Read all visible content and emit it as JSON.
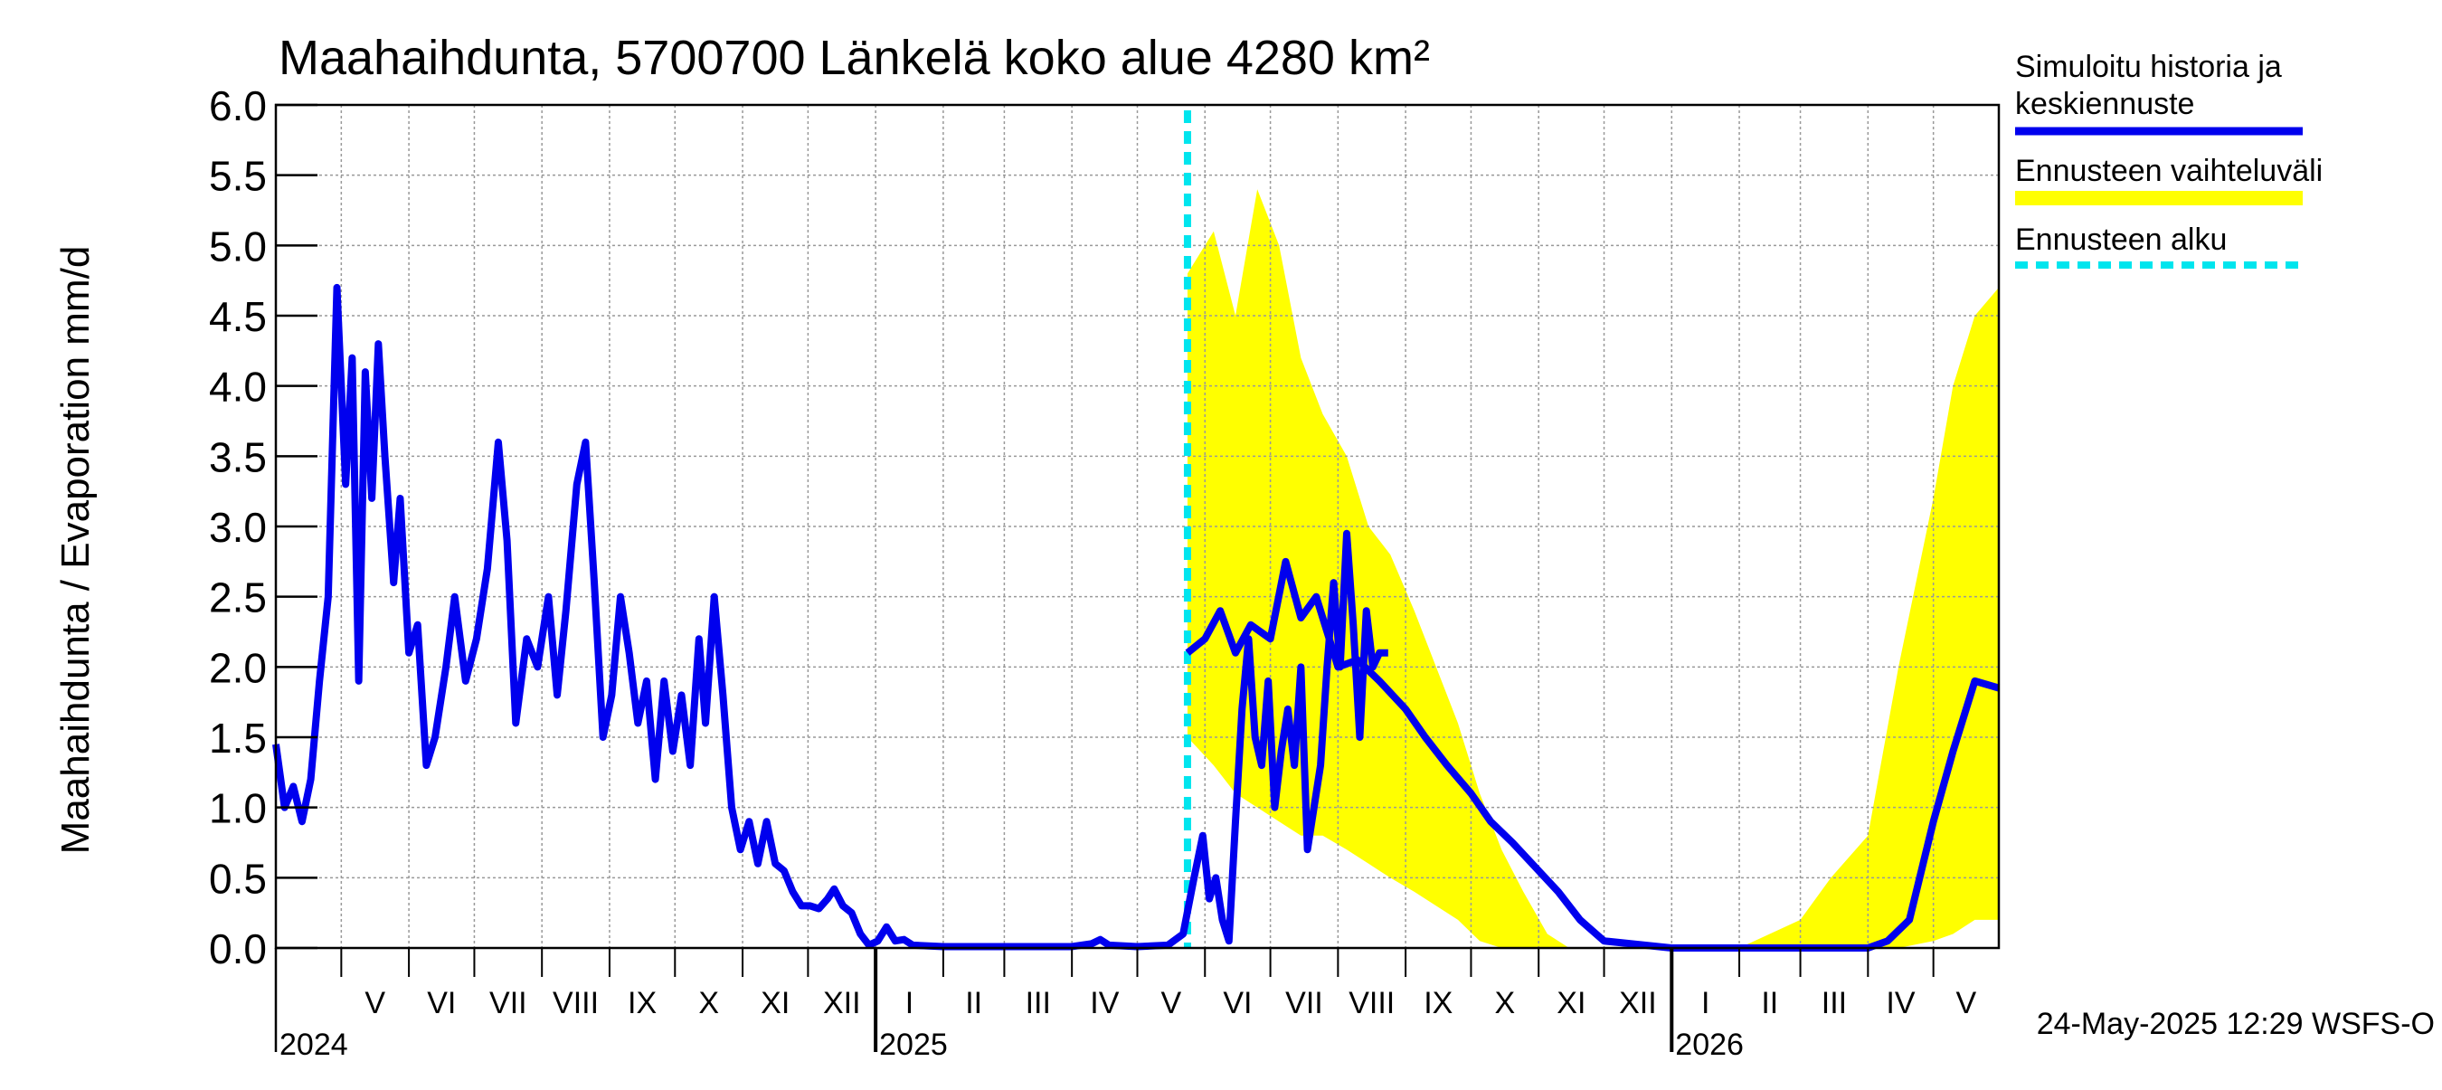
{
  "chart_data": {
    "type": "area",
    "title": "Maahaihdunta, 5700700 Länkelä koko alue 4280 km²",
    "ylabel": "Maahaihdunta / Evaporation   mm/d",
    "xlabel": "",
    "ylim": [
      0.0,
      6.0
    ],
    "ytick_labels": [
      "0.0",
      "0.5",
      "1.0",
      "1.5",
      "2.0",
      "2.5",
      "3.0",
      "3.5",
      "4.0",
      "4.5",
      "5.0",
      "5.5",
      "6.0"
    ],
    "x_start": "2024-04-01",
    "x_end": "2026-05-31",
    "month_labels": [
      "V",
      "VI",
      "VII",
      "VIII",
      "IX",
      "X",
      "XI",
      "XII",
      "I",
      "II",
      "III",
      "IV",
      "V",
      "VI",
      "VII",
      "VIII",
      "IX",
      "X",
      "XI",
      "XII",
      "I",
      "II",
      "III",
      "IV",
      "V"
    ],
    "year_labels": [
      "2024",
      "2025",
      "2026"
    ],
    "grid": true,
    "legend_position": "right",
    "forecast_start": "2025-05-24",
    "series": [
      {
        "name": "Simuloitu historia ja keskiennuste",
        "color": "#0000ee",
        "points": [
          [
            "2024-04-01",
            1.45
          ],
          [
            "2024-04-05",
            1.0
          ],
          [
            "2024-04-09",
            1.15
          ],
          [
            "2024-04-13",
            0.9
          ],
          [
            "2024-04-17",
            1.2
          ],
          [
            "2024-04-21",
            1.9
          ],
          [
            "2024-04-25",
            2.5
          ],
          [
            "2024-04-29",
            4.7
          ],
          [
            "2024-05-03",
            3.3
          ],
          [
            "2024-05-06",
            4.2
          ],
          [
            "2024-05-09",
            1.9
          ],
          [
            "2024-05-12",
            4.1
          ],
          [
            "2024-05-15",
            3.2
          ],
          [
            "2024-05-18",
            4.3
          ],
          [
            "2024-05-21",
            3.5
          ],
          [
            "2024-05-25",
            2.6
          ],
          [
            "2024-05-28",
            3.2
          ],
          [
            "2024-06-01",
            2.1
          ],
          [
            "2024-06-05",
            2.3
          ],
          [
            "2024-06-09",
            1.3
          ],
          [
            "2024-06-13",
            1.5
          ],
          [
            "2024-06-18",
            2.0
          ],
          [
            "2024-06-22",
            2.5
          ],
          [
            "2024-06-27",
            1.9
          ],
          [
            "2024-07-02",
            2.2
          ],
          [
            "2024-07-07",
            2.7
          ],
          [
            "2024-07-12",
            3.6
          ],
          [
            "2024-07-16",
            2.9
          ],
          [
            "2024-07-20",
            1.6
          ],
          [
            "2024-07-25",
            2.2
          ],
          [
            "2024-07-30",
            2.0
          ],
          [
            "2024-08-04",
            2.5
          ],
          [
            "2024-08-08",
            1.8
          ],
          [
            "2024-08-12",
            2.4
          ],
          [
            "2024-08-17",
            3.3
          ],
          [
            "2024-08-21",
            3.6
          ],
          [
            "2024-08-25",
            2.6
          ],
          [
            "2024-08-29",
            1.5
          ],
          [
            "2024-09-02",
            1.8
          ],
          [
            "2024-09-06",
            2.5
          ],
          [
            "2024-09-10",
            2.1
          ],
          [
            "2024-09-14",
            1.6
          ],
          [
            "2024-09-18",
            1.9
          ],
          [
            "2024-09-22",
            1.2
          ],
          [
            "2024-09-26",
            1.9
          ],
          [
            "2024-09-30",
            1.4
          ],
          [
            "2024-10-04",
            1.8
          ],
          [
            "2024-10-08",
            1.3
          ],
          [
            "2024-10-12",
            2.2
          ],
          [
            "2024-10-15",
            1.6
          ],
          [
            "2024-10-19",
            2.5
          ],
          [
            "2024-10-23",
            1.8
          ],
          [
            "2024-10-27",
            1.0
          ],
          [
            "2024-10-31",
            0.7
          ],
          [
            "2024-11-04",
            0.9
          ],
          [
            "2024-11-08",
            0.6
          ],
          [
            "2024-11-12",
            0.9
          ],
          [
            "2024-11-16",
            0.6
          ],
          [
            "2024-11-20",
            0.55
          ],
          [
            "2024-11-24",
            0.4
          ],
          [
            "2024-11-28",
            0.3
          ],
          [
            "2024-12-02",
            0.3
          ],
          [
            "2024-12-06",
            0.28
          ],
          [
            "2024-12-10",
            0.35
          ],
          [
            "2024-12-13",
            0.42
          ],
          [
            "2024-12-17",
            0.3
          ],
          [
            "2024-12-21",
            0.25
          ],
          [
            "2024-12-25",
            0.1
          ],
          [
            "2024-12-29",
            0.02
          ],
          [
            "2025-01-02",
            0.05
          ],
          [
            "2025-01-06",
            0.15
          ],
          [
            "2025-01-10",
            0.05
          ],
          [
            "2025-01-14",
            0.06
          ],
          [
            "2025-01-18",
            0.02
          ],
          [
            "2025-02-01",
            0.01
          ],
          [
            "2025-03-01",
            0.01
          ],
          [
            "2025-04-01",
            0.01
          ],
          [
            "2025-04-10",
            0.03
          ],
          [
            "2025-04-14",
            0.06
          ],
          [
            "2025-04-18",
            0.02
          ],
          [
            "2025-05-01",
            0.01
          ],
          [
            "2025-05-15",
            0.02
          ],
          [
            "2025-05-22",
            0.1
          ],
          [
            "2025-05-27",
            0.5
          ],
          [
            "2025-05-31",
            0.8
          ],
          [
            "2025-06-03",
            0.35
          ],
          [
            "2025-06-06",
            0.5
          ],
          [
            "2025-06-09",
            0.2
          ],
          [
            "2025-06-12",
            0.05
          ],
          [
            "2025-06-15",
            0.9
          ],
          [
            "2025-06-18",
            1.7
          ],
          [
            "2025-06-21",
            2.2
          ],
          [
            "2025-06-24",
            1.5
          ],
          [
            "2025-06-27",
            1.3
          ],
          [
            "2025-06-30",
            1.9
          ],
          [
            "2025-07-03",
            1.0
          ],
          [
            "2025-07-06",
            1.4
          ],
          [
            "2025-07-09",
            1.7
          ],
          [
            "2025-07-12",
            1.3
          ],
          [
            "2025-07-15",
            2.0
          ],
          [
            "2025-07-18",
            0.7
          ],
          [
            "2025-07-21",
            1.0
          ],
          [
            "2025-07-24",
            1.3
          ],
          [
            "2025-07-27",
            2.0
          ],
          [
            "2025-07-30",
            2.6
          ],
          [
            "2025-08-02",
            2.0
          ],
          [
            "2025-08-05",
            2.95
          ],
          [
            "2025-08-08",
            2.3
          ],
          [
            "2025-08-11",
            1.5
          ],
          [
            "2025-08-14",
            2.4
          ],
          [
            "2025-08-17",
            2.0
          ],
          [
            "2025-08-20",
            2.1
          ],
          [
            "2025-08-24",
            2.1
          ]
        ]
      }
    ],
    "forecast_series": [
      {
        "name": "Ennusteen vaihteluväli",
        "color": "#ffff00",
        "points_x": [
          "2025-05-24",
          "2025-06-05",
          "2025-06-15",
          "2025-06-25",
          "2025-07-05",
          "2025-07-15",
          "2025-07-25",
          "2025-08-05",
          "2025-08-15",
          "2025-08-25",
          "2025-09-05",
          "2025-09-15",
          "2025-09-25",
          "2025-10-05",
          "2025-10-15",
          "2025-10-25",
          "2025-11-05",
          "2025-11-15",
          "2025-11-25",
          "2025-12-05",
          "2025-12-15",
          "2026-01-01",
          "2026-02-01",
          "2026-03-01",
          "2026-03-15",
          "2026-04-01",
          "2026-04-15",
          "2026-05-01",
          "2026-05-10",
          "2026-05-20",
          "2026-05-31"
        ],
        "low": [
          1.5,
          1.3,
          1.1,
          1.0,
          0.9,
          0.8,
          0.8,
          0.7,
          0.6,
          0.5,
          0.4,
          0.3,
          0.2,
          0.05,
          0.0,
          0.0,
          0.0,
          0.0,
          0.0,
          0.0,
          0.0,
          0.0,
          0.0,
          0.0,
          0.0,
          0.0,
          0.0,
          0.05,
          0.1,
          0.2,
          0.2
        ],
        "high": [
          4.8,
          5.1,
          4.5,
          5.4,
          5.0,
          4.2,
          3.8,
          3.5,
          3.0,
          2.8,
          2.4,
          2.0,
          1.6,
          1.1,
          0.7,
          0.4,
          0.1,
          0.0,
          0.0,
          0.0,
          0.0,
          0.0,
          0.0,
          0.2,
          0.5,
          0.8,
          2.0,
          3.2,
          4.0,
          4.5,
          4.7
        ]
      },
      {
        "name": "Keskiennuste",
        "color": "#0000ee",
        "points_x": [
          "2025-05-24",
          "2025-06-01",
          "2025-06-08",
          "2025-06-15",
          "2025-06-22",
          "2025-07-01",
          "2025-07-08",
          "2025-07-15",
          "2025-07-22",
          "2025-08-01",
          "2025-08-10",
          "2025-08-20",
          "2025-09-01",
          "2025-09-10",
          "2025-09-20",
          "2025-10-01",
          "2025-10-10",
          "2025-10-20",
          "2025-11-01",
          "2025-11-10",
          "2025-11-20",
          "2025-12-01",
          "2026-01-01",
          "2026-02-01",
          "2026-03-01",
          "2026-04-01",
          "2026-04-10",
          "2026-04-20",
          "2026-05-01",
          "2026-05-10",
          "2026-05-20",
          "2026-05-31"
        ],
        "values": [
          2.1,
          2.2,
          2.4,
          2.1,
          2.3,
          2.2,
          2.75,
          2.35,
          2.5,
          2.0,
          2.05,
          1.9,
          1.7,
          1.5,
          1.3,
          1.1,
          0.9,
          0.75,
          0.55,
          0.4,
          0.2,
          0.05,
          0.0,
          0.0,
          0.0,
          0.0,
          0.05,
          0.2,
          0.9,
          1.4,
          1.9,
          1.85
        ]
      }
    ]
  },
  "legend": {
    "history_line1": "Simuloitu historia ja",
    "history_line2": "keskiennuste",
    "range_label": "Ennusteen vaihteluväli",
    "start_label": "Ennusteen alku"
  },
  "footer": {
    "timestamp": "24-May-2025 12:29 WSFS-O"
  },
  "colors": {
    "history": "#0000ee",
    "range": "#ffff00",
    "forecast_start": "#00e5ee",
    "grid": "#999999"
  }
}
